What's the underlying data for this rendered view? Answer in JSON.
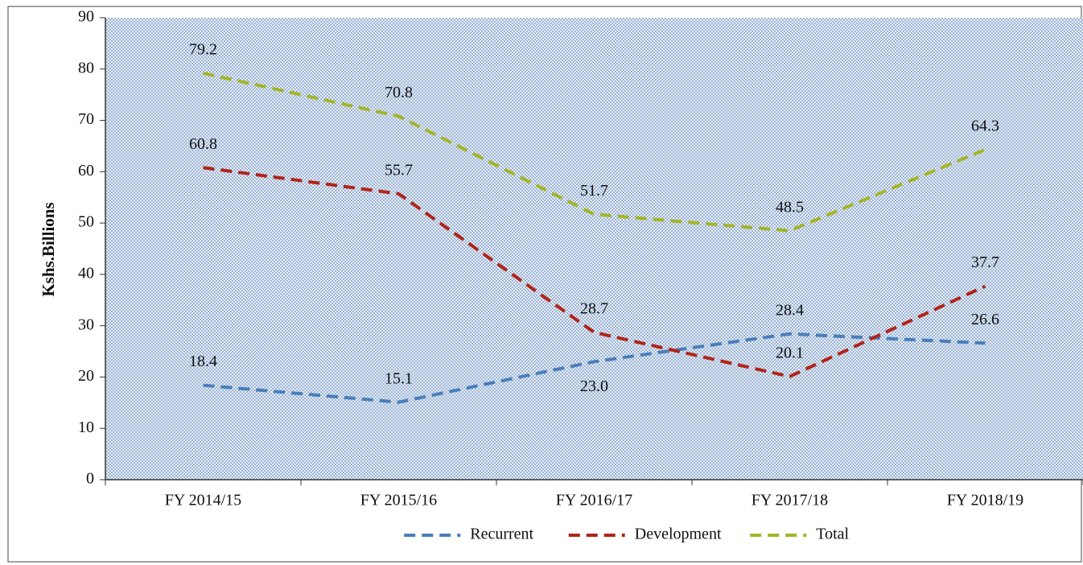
{
  "chart_data": {
    "type": "line",
    "y_label": "Kshs.Billions",
    "categories": [
      "FY 2014/15",
      "FY 2015/16",
      "FY 2016/17",
      "FY 2017/18",
      "FY 2018/19"
    ],
    "series": [
      {
        "name": "Recurrent",
        "color": "#4a7ebb",
        "values": [
          18.4,
          15.1,
          23.0,
          28.4,
          26.6
        ],
        "value_labels": [
          "18.4",
          "15.1",
          "23.0",
          "28.4",
          "26.6"
        ]
      },
      {
        "name": "Development",
        "color": "#b02418",
        "values": [
          60.8,
          55.7,
          28.7,
          20.1,
          37.7
        ],
        "value_labels": [
          "60.8",
          "55.7",
          "28.7",
          "20.1",
          "37.7"
        ]
      },
      {
        "name": "Total",
        "color": "#a3b526",
        "values": [
          79.2,
          70.8,
          51.7,
          48.5,
          64.3
        ],
        "value_labels": [
          "79.2",
          "70.8",
          "51.7",
          "48.5",
          "64.3"
        ]
      }
    ],
    "ylim": [
      0,
      90
    ],
    "yticks": [
      0,
      10,
      20,
      30,
      40,
      50,
      60,
      70,
      80,
      90
    ],
    "legend": "bottom",
    "line_style": "dashed"
  }
}
